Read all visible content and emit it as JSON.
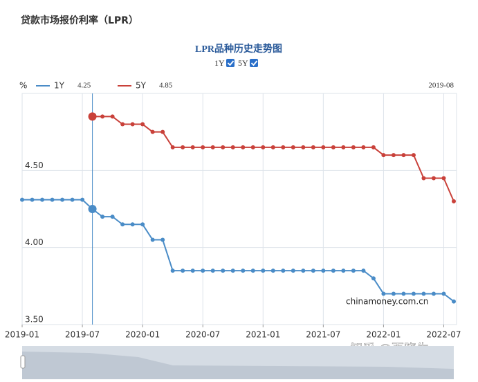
{
  "page_title": "贷款市场报价利率（LPR）",
  "chart_data": {
    "type": "line",
    "title": "LPR品种历史走势图",
    "y_unit": "%",
    "categories": [
      "2019-01",
      null,
      null,
      null,
      null,
      null,
      "2019-07",
      null,
      null,
      null,
      null,
      null,
      "2020-01",
      null,
      null,
      null,
      null,
      null,
      "2020-07",
      null,
      null,
      null,
      null,
      null,
      "2021-01",
      null,
      null,
      null,
      null,
      null,
      "2021-07",
      null,
      null,
      null,
      null,
      null,
      "2022-01",
      null,
      null,
      null,
      null,
      null,
      "2022-07",
      null
    ],
    "series": [
      {
        "name": "1Y",
        "color": "#4a8cc7",
        "values": [
          4.31,
          4.31,
          4.31,
          4.31,
          4.31,
          4.31,
          4.31,
          4.25,
          4.2,
          4.2,
          4.15,
          4.15,
          4.15,
          4.05,
          4.05,
          3.85,
          3.85,
          3.85,
          3.85,
          3.85,
          3.85,
          3.85,
          3.85,
          3.85,
          3.85,
          3.85,
          3.85,
          3.85,
          3.85,
          3.85,
          3.85,
          3.85,
          3.85,
          3.85,
          3.85,
          3.8,
          3.7,
          3.7,
          3.7,
          3.7,
          3.7,
          3.7,
          3.7,
          3.65
        ]
      },
      {
        "name": "5Y",
        "color": "#c9413a",
        "values": [
          null,
          null,
          null,
          null,
          null,
          null,
          null,
          4.85,
          4.85,
          4.85,
          4.8,
          4.8,
          4.8,
          4.75,
          4.75,
          4.65,
          4.65,
          4.65,
          4.65,
          4.65,
          4.65,
          4.65,
          4.65,
          4.65,
          4.65,
          4.65,
          4.65,
          4.65,
          4.65,
          4.65,
          4.65,
          4.65,
          4.65,
          4.65,
          4.65,
          4.65,
          4.6,
          4.6,
          4.6,
          4.6,
          4.45,
          4.45,
          4.45,
          4.3
        ]
      }
    ],
    "ylim": [
      3.5,
      5.0
    ],
    "yticks": [
      {
        "value": 3.5,
        "label": "3.50"
      },
      {
        "value": 4.0,
        "label": "4.00"
      },
      {
        "value": 4.5,
        "label": "4.50"
      }
    ],
    "grid": true,
    "tooltip": {
      "index": 7,
      "date": "2019-08",
      "values": [
        4.25,
        4.85
      ]
    },
    "annotation": "chinamoney.com.cn"
  },
  "watermark": "知乎 @百晓生"
}
